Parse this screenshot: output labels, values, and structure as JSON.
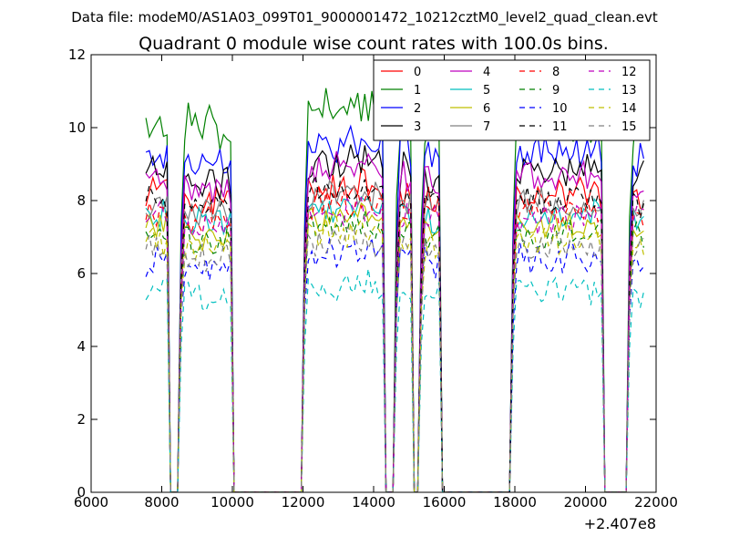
{
  "figure": {
    "suptitle": "Data file: modeM0/AS1A03_099T01_9000001472_10212cztM0_level2_quad_clean.evt"
  },
  "chart_data": {
    "type": "line",
    "title": "Quadrant 0 module wise count rates with 100.0s bins.",
    "xlabel": "",
    "ylabel": "",
    "x_offset_label": "+2.407e8",
    "xlim": [
      6000,
      22000
    ],
    "ylim": [
      0,
      12
    ],
    "xticks": [
      6000,
      8000,
      10000,
      12000,
      14000,
      16000,
      18000,
      20000,
      22000
    ],
    "yticks": [
      0,
      2,
      4,
      6,
      8,
      10,
      12
    ],
    "legend_location": "top-right",
    "bin_seconds": 100,
    "x_start": 7550,
    "x_step": 100,
    "segments": [
      {
        "start": 7550,
        "end": 8150,
        "weight": 1.0
      },
      {
        "start": 8550,
        "end": 9950,
        "weight": 0.97
      },
      {
        "start": 12050,
        "end": 14250,
        "weight": 1.03
      },
      {
        "start": 14650,
        "end": 15050,
        "weight": 1.0
      },
      {
        "start": 15350,
        "end": 15850,
        "weight": 0.99
      },
      {
        "start": 17950,
        "end": 20450,
        "weight": 1.0
      },
      {
        "start": 21250,
        "end": 21650,
        "weight": 0.98
      }
    ],
    "series": [
      {
        "name": "0",
        "color": "#ff0000",
        "dash": "solid",
        "level": 8.2,
        "amp": 0.4
      },
      {
        "name": "1",
        "color": "#008000",
        "dash": "solid",
        "level": 10.3,
        "amp": 0.6
      },
      {
        "name": "2",
        "color": "#0000ff",
        "dash": "solid",
        "level": 9.3,
        "amp": 0.45
      },
      {
        "name": "3",
        "color": "#000000",
        "dash": "solid",
        "level": 8.8,
        "amp": 0.4
      },
      {
        "name": "4",
        "color": "#bf00bf",
        "dash": "solid",
        "level": 8.6,
        "amp": 0.4
      },
      {
        "name": "5",
        "color": "#00bfbf",
        "dash": "solid",
        "level": 7.6,
        "amp": 0.35
      },
      {
        "name": "6",
        "color": "#bfbf00",
        "dash": "solid",
        "level": 7.3,
        "amp": 0.35
      },
      {
        "name": "7",
        "color": "#808080",
        "dash": "solid",
        "level": 7.9,
        "amp": 0.35
      },
      {
        "name": "8",
        "color": "#ff0000",
        "dash": "dashed",
        "level": 7.7,
        "amp": 0.35
      },
      {
        "name": "9",
        "color": "#008000",
        "dash": "dashed",
        "level": 7.1,
        "amp": 0.35
      },
      {
        "name": "10",
        "color": "#0000ff",
        "dash": "dashed",
        "level": 6.4,
        "amp": 0.35
      },
      {
        "name": "11",
        "color": "#000000",
        "dash": "dashed",
        "level": 8.0,
        "amp": 0.35
      },
      {
        "name": "12",
        "color": "#bf00bf",
        "dash": "dashed",
        "level": 7.5,
        "amp": 0.35
      },
      {
        "name": "13",
        "color": "#00bfbf",
        "dash": "dashed",
        "level": 5.5,
        "amp": 0.35
      },
      {
        "name": "14",
        "color": "#bfbf00",
        "dash": "dashed",
        "level": 6.9,
        "amp": 0.35
      },
      {
        "name": "15",
        "color": "#808080",
        "dash": "dashed",
        "level": 6.7,
        "amp": 0.35
      }
    ]
  }
}
